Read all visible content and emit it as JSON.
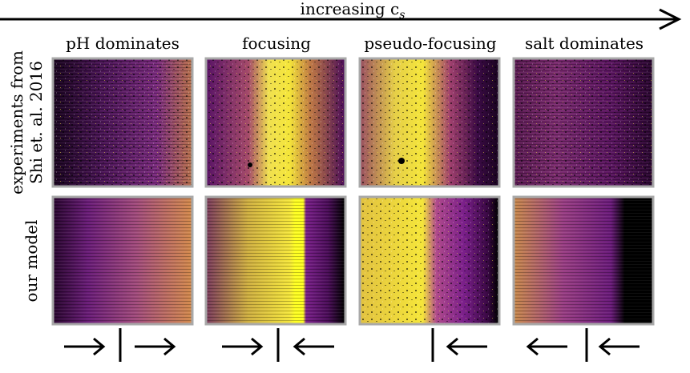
{
  "figure": {
    "top_axis_label": "increasing c",
    "top_axis_subscript": "s",
    "row_labels": [
      {
        "line1": "experiments from",
        "line2": "Shi et. al. 2016"
      },
      {
        "line1": "our model",
        "line2": ""
      }
    ],
    "columns": [
      {
        "title": "pH dominates"
      },
      {
        "title": "focusing"
      },
      {
        "title": "pseudo-focusing"
      },
      {
        "title": "salt dominates"
      }
    ],
    "colors": {
      "panel_border": "#a9a9a9",
      "black": "#000000",
      "dark_purple": "#3d0a4a",
      "purple": "#7a1f8a",
      "magenta": "#9c3a8e",
      "orange": "#c97a4e",
      "yellow": "#f5e63a"
    }
  }
}
